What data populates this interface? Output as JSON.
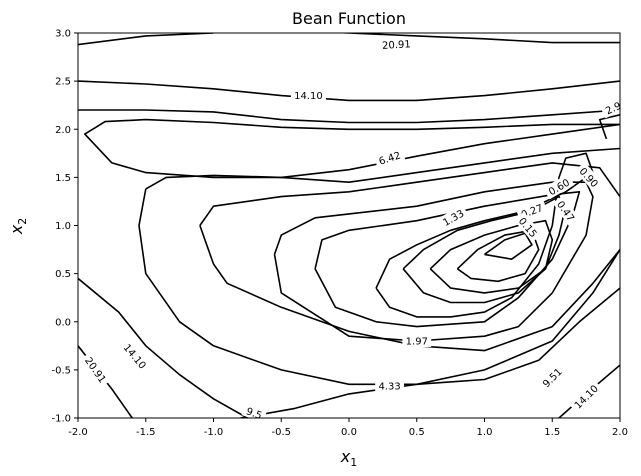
{
  "chart_data": {
    "type": "contour",
    "title": "Bean Function",
    "xlabel": "x",
    "xlabel_sub": "1",
    "ylabel": "x",
    "ylabel_sub": "2",
    "xlim": [
      -2.0,
      2.0
    ],
    "ylim": [
      -1.0,
      3.0
    ],
    "xticks": [
      "-2.0",
      "-1.5",
      "-1.0",
      "-0.5",
      "0.0",
      "0.5",
      "1.0",
      "1.5",
      "2.0"
    ],
    "yticks": [
      "-1.0",
      "-0.5",
      "0.0",
      "0.5",
      "1.0",
      "1.5",
      "2.0",
      "2.5",
      "3.0"
    ],
    "grid": false,
    "line_color": "#000000",
    "levels": [
      0.15,
      0.27,
      0.47,
      0.6,
      0.9,
      1.33,
      1.97,
      2.91,
      4.33,
      6.42,
      9.51,
      14.1,
      20.91
    ],
    "contours": [
      {
        "level": "20.91",
        "lines": [
          [
            [
              -2.0,
              2.88
            ],
            [
              -1.5,
              2.97
            ],
            [
              -1.0,
              3.0
            ]
          ],
          [
            [
              -0.5,
              3.03
            ],
            [
              0.0,
              3.0
            ],
            [
              0.5,
              2.97
            ],
            [
              1.0,
              2.94
            ],
            [
              1.5,
              2.9
            ],
            [
              2.0,
              2.9
            ]
          ],
          [
            [
              -2.0,
              -0.25
            ],
            [
              -1.75,
              -0.7
            ],
            [
              -1.6,
              -1.0
            ]
          ]
        ]
      },
      {
        "level": "14.10",
        "lines": [
          [
            [
              -2.0,
              2.5
            ],
            [
              -1.5,
              2.47
            ],
            [
              -1.0,
              2.42
            ],
            [
              -0.5,
              2.35
            ],
            [
              0.0,
              2.3
            ],
            [
              0.5,
              2.3
            ],
            [
              1.0,
              2.35
            ],
            [
              1.5,
              2.42
            ],
            [
              2.0,
              2.5
            ]
          ],
          [
            [
              -2.0,
              0.45
            ],
            [
              -1.7,
              0.1
            ],
            [
              -1.5,
              -0.25
            ],
            [
              -1.25,
              -0.55
            ],
            [
              -1.0,
              -0.8
            ],
            [
              -0.75,
              -1.0
            ]
          ],
          [
            [
              1.55,
              -1.0
            ],
            [
              1.75,
              -0.75
            ],
            [
              2.0,
              -0.45
            ]
          ]
        ]
      },
      {
        "level": "6.42",
        "lines": [
          [
            [
              2.0,
              2.05
            ],
            [
              1.5,
              1.95
            ],
            [
              1.0,
              1.85
            ],
            [
              0.5,
              1.72
            ],
            [
              0.0,
              1.58
            ],
            [
              -0.5,
              1.5
            ],
            [
              -1.0,
              1.5
            ],
            [
              -1.5,
              1.55
            ],
            [
              -1.75,
              1.65
            ],
            [
              -1.95,
              1.95
            ],
            [
              -1.8,
              2.08
            ],
            [
              -1.5,
              2.1
            ],
            [
              -1.0,
              2.07
            ],
            [
              -0.5,
              2.02
            ],
            [
              0.0,
              2.0
            ],
            [
              0.5,
              2.0
            ],
            [
              1.0,
              2.02
            ],
            [
              1.5,
              2.05
            ],
            [
              2.0,
              2.05
            ]
          ]
        ]
      },
      {
        "level": "9.51",
        "lines": [
          [
            [
              -2.0,
              2.2
            ],
            [
              -1.5,
              2.2
            ],
            [
              -1.0,
              2.18
            ],
            [
              -0.5,
              2.1
            ],
            [
              0.0,
              2.07
            ],
            [
              0.5,
              2.07
            ],
            [
              1.0,
              2.1
            ],
            [
              1.5,
              2.15
            ],
            [
              2.0,
              2.2
            ]
          ],
          [
            [
              -0.8,
              -1.0
            ],
            [
              -0.4,
              -0.9
            ],
            [
              0.0,
              -0.75
            ],
            [
              0.5,
              -0.65
            ],
            [
              1.0,
              -0.6
            ],
            [
              1.4,
              -0.4
            ],
            [
              1.7,
              0.0
            ],
            [
              2.0,
              0.35
            ]
          ]
        ]
      },
      {
        "level": "2.91",
        "lines": [
          [
            [
              2.0,
              2.15
            ],
            [
              1.85,
              2.1
            ],
            [
              1.9,
              1.9
            ]
          ],
          [
            [
              -1.1,
              1.0
            ],
            [
              -1.0,
              1.2
            ],
            [
              -0.5,
              1.3
            ],
            [
              0.0,
              1.35
            ],
            [
              0.5,
              1.45
            ],
            [
              1.0,
              1.55
            ],
            [
              1.5,
              1.65
            ],
            [
              1.85,
              1.6
            ],
            [
              2.0,
              1.3
            ]
          ],
          [
            [
              -1.0,
              0.6
            ],
            [
              -1.05,
              0.8
            ],
            [
              -1.1,
              1.0
            ]
          ],
          [
            [
              -1.0,
              0.6
            ],
            [
              -0.9,
              0.4
            ],
            [
              -0.5,
              0.15
            ],
            [
              0.0,
              -0.1
            ],
            [
              0.5,
              -0.25
            ],
            [
              1.0,
              -0.3
            ],
            [
              1.5,
              -0.05
            ],
            [
              1.8,
              0.4
            ],
            [
              2.0,
              0.75
            ]
          ]
        ]
      },
      {
        "level": "4.33",
        "lines": [
          [
            [
              -1.5,
              1.38
            ],
            [
              -1.55,
              1.0
            ],
            [
              -1.5,
              0.5
            ],
            [
              -1.25,
              0.0
            ],
            [
              -1.0,
              -0.25
            ],
            [
              -0.5,
              -0.5
            ],
            [
              0.0,
              -0.65
            ],
            [
              0.5,
              -0.65
            ],
            [
              1.0,
              -0.5
            ],
            [
              1.5,
              -0.2
            ],
            [
              1.8,
              0.3
            ],
            [
              2.0,
              0.75
            ]
          ],
          [
            [
              -1.5,
              1.38
            ],
            [
              -1.35,
              1.5
            ],
            [
              -1.0,
              1.52
            ],
            [
              -0.5,
              1.5
            ],
            [
              0.0,
              1.45
            ],
            [
              0.5,
              1.55
            ],
            [
              1.0,
              1.65
            ],
            [
              1.5,
              1.75
            ],
            [
              2.0,
              1.8
            ]
          ]
        ]
      },
      {
        "level": "1.97",
        "lines": [
          [
            [
              -0.55,
              0.7
            ],
            [
              -0.5,
              0.9
            ],
            [
              -0.25,
              1.08
            ],
            [
              0.0,
              1.12
            ],
            [
              0.5,
              1.2
            ],
            [
              1.0,
              1.35
            ],
            [
              1.5,
              1.45
            ],
            [
              1.75,
              1.45
            ],
            [
              1.8,
              1.3
            ],
            [
              1.75,
              0.9
            ],
            [
              1.5,
              0.3
            ],
            [
              1.25,
              -0.05
            ],
            [
              1.0,
              -0.15
            ],
            [
              0.5,
              -0.2
            ],
            [
              0.0,
              -0.15
            ],
            [
              -0.5,
              0.3
            ],
            [
              -0.55,
              0.7
            ]
          ]
        ]
      },
      {
        "level": "1.33",
        "lines": [
          [
            [
              -0.25,
              0.55
            ],
            [
              -0.2,
              0.85
            ],
            [
              0.0,
              0.95
            ],
            [
              0.5,
              1.05
            ],
            [
              1.0,
              1.2
            ],
            [
              1.5,
              1.32
            ],
            [
              1.7,
              1.35
            ],
            [
              1.65,
              1.1
            ],
            [
              1.5,
              0.65
            ],
            [
              1.25,
              0.25
            ],
            [
              1.0,
              0.0
            ],
            [
              0.5,
              -0.05
            ],
            [
              0.2,
              0.0
            ],
            [
              -0.1,
              0.15
            ],
            [
              -0.25,
              0.55
            ]
          ]
        ]
      },
      {
        "level": "0.90",
        "lines": [
          [
            [
              0.2,
              0.35
            ],
            [
              0.3,
              0.65
            ],
            [
              0.5,
              0.8
            ],
            [
              0.75,
              0.95
            ],
            [
              1.0,
              1.05
            ],
            [
              1.3,
              1.15
            ],
            [
              1.6,
              1.35
            ],
            [
              1.8,
              1.55
            ],
            [
              1.75,
              1.75
            ],
            [
              1.6,
              1.7
            ],
            [
              1.55,
              1.5
            ],
            [
              1.5,
              1.0
            ],
            [
              1.4,
              0.6
            ],
            [
              1.2,
              0.25
            ],
            [
              1.0,
              0.1
            ],
            [
              0.75,
              0.05
            ],
            [
              0.5,
              0.05
            ],
            [
              0.3,
              0.15
            ],
            [
              0.2,
              0.35
            ]
          ]
        ]
      },
      {
        "level": "0.60",
        "lines": [
          [
            [
              0.4,
              0.55
            ],
            [
              0.55,
              0.75
            ],
            [
              0.8,
              0.95
            ],
            [
              1.05,
              1.05
            ],
            [
              1.35,
              1.15
            ],
            [
              1.55,
              1.3
            ],
            [
              1.6,
              1.2
            ],
            [
              1.55,
              0.9
            ],
            [
              1.45,
              0.55
            ],
            [
              1.25,
              0.3
            ],
            [
              1.0,
              0.2
            ],
            [
              0.75,
              0.2
            ],
            [
              0.55,
              0.3
            ],
            [
              0.4,
              0.55
            ]
          ]
        ]
      },
      {
        "level": "0.47",
        "lines": [
          [
            [
              0.6,
              0.55
            ],
            [
              0.75,
              0.75
            ],
            [
              1.0,
              0.9
            ],
            [
              1.25,
              1.0
            ],
            [
              1.45,
              1.05
            ],
            [
              1.5,
              0.85
            ],
            [
              1.45,
              0.55
            ],
            [
              1.25,
              0.35
            ],
            [
              1.0,
              0.3
            ],
            [
              0.75,
              0.35
            ],
            [
              0.6,
              0.55
            ]
          ]
        ]
      },
      {
        "level": "0.27",
        "lines": [
          [
            [
              0.8,
              0.55
            ],
            [
              0.95,
              0.75
            ],
            [
              1.15,
              0.9
            ],
            [
              1.35,
              0.95
            ],
            [
              1.4,
              0.75
            ],
            [
              1.3,
              0.5
            ],
            [
              1.1,
              0.42
            ],
            [
              0.9,
              0.45
            ],
            [
              0.8,
              0.55
            ]
          ]
        ]
      },
      {
        "level": "0.15",
        "lines": [
          [
            [
              1.0,
              0.7
            ],
            [
              1.15,
              0.85
            ],
            [
              1.3,
              0.92
            ],
            [
              1.35,
              0.8
            ],
            [
              1.2,
              0.65
            ],
            [
              1.0,
              0.7
            ]
          ]
        ]
      }
    ],
    "contour_labels": [
      {
        "text": "20.91",
        "x": 0.35,
        "y": 2.88,
        "rotation": -3
      },
      {
        "text": "14.10",
        "x": -0.3,
        "y": 2.35,
        "rotation": 0
      },
      {
        "text": "6.42",
        "x": 0.3,
        "y": 1.7,
        "rotation": -18
      },
      {
        "text": "2.9",
        "x": 1.95,
        "y": 2.22,
        "rotation": -25
      },
      {
        "text": "0.90",
        "x": 1.77,
        "y": 1.5,
        "rotation": 48
      },
      {
        "text": "0.60",
        "x": 1.55,
        "y": 1.4,
        "rotation": -30
      },
      {
        "text": "0.47",
        "x": 1.6,
        "y": 1.15,
        "rotation": 55
      },
      {
        "text": "0.27",
        "x": 1.35,
        "y": 1.15,
        "rotation": -20
      },
      {
        "text": "0.15",
        "x": 1.32,
        "y": 0.98,
        "rotation": 50
      },
      {
        "text": "1.33",
        "x": 0.77,
        "y": 1.08,
        "rotation": -30
      },
      {
        "text": "1.97",
        "x": 0.5,
        "y": -0.2,
        "rotation": 0
      },
      {
        "text": "4.33",
        "x": 0.3,
        "y": -0.67,
        "rotation": 0
      },
      {
        "text": "9.51",
        "x": 1.5,
        "y": -0.58,
        "rotation": -45
      },
      {
        "text": "14.10",
        "x": 1.75,
        "y": -0.78,
        "rotation": -45
      },
      {
        "text": "14.10",
        "x": -1.58,
        "y": -0.36,
        "rotation": 50
      },
      {
        "text": "20.91",
        "x": -1.87,
        "y": -0.5,
        "rotation": 55
      },
      {
        "text": "9.5",
        "x": -0.7,
        "y": -0.95,
        "rotation": 20
      }
    ]
  }
}
